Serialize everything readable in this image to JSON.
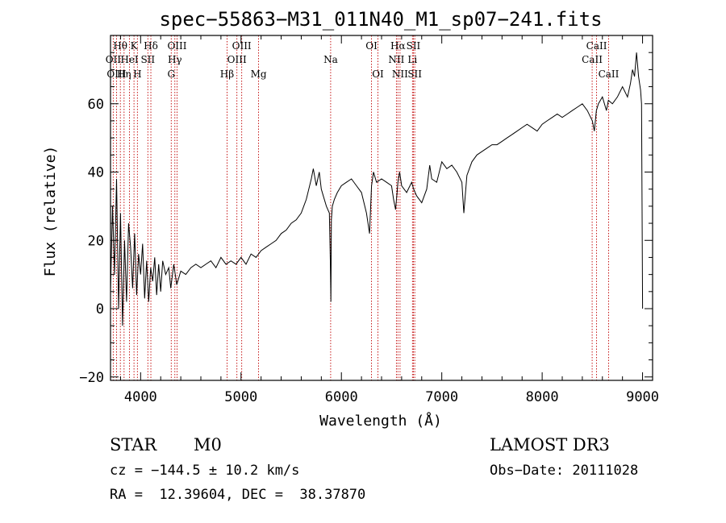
{
  "chart_data": {
    "type": "line",
    "title": "spec−55863−M31_011N40_M1_sp07−241.fits",
    "xlabel": "Wavelength (Å)",
    "ylabel": "Flux (relative)",
    "xlim": [
      3700,
      9100
    ],
    "ylim": [
      -21,
      80
    ],
    "xticks": [
      4000,
      5000,
      6000,
      7000,
      8000,
      9000
    ],
    "yticks": [
      -20,
      0,
      20,
      40,
      60
    ],
    "xtick_labels": [
      "4000",
      "5000",
      "6000",
      "7000",
      "8000",
      "9000"
    ],
    "ytick_labels": [
      "−20",
      "0",
      "20",
      "40",
      "60"
    ],
    "series": [
      {
        "name": "flux",
        "x": [
          3700,
          3720,
          3740,
          3760,
          3780,
          3800,
          3820,
          3840,
          3860,
          3880,
          3900,
          3920,
          3940,
          3960,
          3980,
          4000,
          4020,
          4040,
          4060,
          4080,
          4100,
          4120,
          4140,
          4160,
          4180,
          4200,
          4220,
          4250,
          4280,
          4300,
          4330,
          4360,
          4400,
          4450,
          4500,
          4550,
          4600,
          4650,
          4700,
          4750,
          4800,
          4850,
          4900,
          4950,
          5000,
          5050,
          5100,
          5150,
          5200,
          5250,
          5300,
          5350,
          5400,
          5450,
          5500,
          5550,
          5600,
          5650,
          5700,
          5720,
          5750,
          5780,
          5800,
          5820,
          5850,
          5880,
          5890,
          5895,
          5900,
          5910,
          5930,
          5960,
          6000,
          6050,
          6100,
          6150,
          6200,
          6250,
          6280,
          6300,
          6320,
          6350,
          6400,
          6450,
          6500,
          6520,
          6540,
          6563,
          6580,
          6600,
          6650,
          6700,
          6720,
          6750,
          6800,
          6850,
          6880,
          6900,
          6950,
          7000,
          7050,
          7100,
          7150,
          7200,
          7220,
          7250,
          7300,
          7350,
          7400,
          7450,
          7500,
          7550,
          7600,
          7650,
          7700,
          7750,
          7800,
          7850,
          7900,
          7950,
          8000,
          8050,
          8100,
          8150,
          8200,
          8250,
          8300,
          8350,
          8400,
          8450,
          8500,
          8520,
          8540,
          8560,
          8600,
          8640,
          8660,
          8700,
          8750,
          8800,
          8850,
          8880,
          8900,
          8920,
          8940,
          8960,
          8980,
          8990,
          9000
        ],
        "y": [
          5,
          30,
          10,
          38,
          0,
          28,
          -5,
          20,
          2,
          25,
          18,
          6,
          22,
          4,
          16,
          10,
          19,
          3,
          14,
          2,
          12,
          8,
          15,
          4,
          13,
          5,
          14,
          10,
          12,
          6,
          13,
          7,
          11,
          10,
          12,
          13,
          12,
          13,
          14,
          12,
          15,
          13,
          14,
          13,
          15,
          13,
          16,
          15,
          17,
          18,
          19,
          20,
          22,
          23,
          25,
          26,
          28,
          32,
          38,
          41,
          36,
          40,
          35,
          33,
          30,
          28,
          14,
          2,
          26,
          30,
          32,
          34,
          36,
          37,
          38,
          36,
          34,
          28,
          22,
          36,
          40,
          37,
          38,
          37,
          36,
          32,
          29,
          37,
          40,
          36,
          34,
          37,
          35,
          33,
          31,
          35,
          42,
          38,
          37,
          43,
          41,
          42,
          40,
          37,
          28,
          39,
          43,
          45,
          46,
          47,
          48,
          48,
          49,
          50,
          51,
          52,
          53,
          54,
          53,
          52,
          54,
          55,
          56,
          57,
          56,
          57,
          58,
          59,
          60,
          58,
          55,
          52,
          58,
          60,
          62,
          58,
          61,
          60,
          62,
          65,
          62,
          66,
          70,
          68,
          75,
          68,
          64,
          60,
          0
        ]
      }
    ],
    "line_labels": [
      {
        "name": "Hθ",
        "wl": 3798
      },
      {
        "name": "OII",
        "wl": 3727
      },
      {
        "name": "OIII",
        "wl": 3760
      },
      {
        "name": "K",
        "wl": 3934
      },
      {
        "name": "HeI",
        "wl": 3889
      },
      {
        "name": "Hη",
        "wl": 3835
      },
      {
        "name": "Hδ",
        "wl": 4102
      },
      {
        "name": "SII",
        "wl": 4072
      },
      {
        "name": "H",
        "wl": 3968
      },
      {
        "name": "OIII",
        "wl": 4363
      },
      {
        "name": "Hγ",
        "wl": 4341
      },
      {
        "name": "G",
        "wl": 4305
      },
      {
        "name": "OIII",
        "wl": 5007
      },
      {
        "name": "OIII",
        "wl": 4959
      },
      {
        "name": "Hβ",
        "wl": 4861
      },
      {
        "name": "Mg",
        "wl": 5175
      },
      {
        "name": "Na",
        "wl": 5893
      },
      {
        "name": "OI",
        "wl": 6300
      },
      {
        "name": "OI",
        "wl": 6364
      },
      {
        "name": "Hα",
        "wl": 6563
      },
      {
        "name": "SII",
        "wl": 6717
      },
      {
        "name": "NII",
        "wl": 6548
      },
      {
        "name": "Li",
        "wl": 6708
      },
      {
        "name": "NII",
        "wl": 6584
      },
      {
        "name": "SII",
        "wl": 6731
      },
      {
        "name": "CaII",
        "wl": 8542
      },
      {
        "name": "CaII",
        "wl": 8498
      },
      {
        "name": "CaII",
        "wl": 8662
      }
    ]
  },
  "info": {
    "class": "STAR",
    "subclass": "M0",
    "survey": "LAMOST DR3",
    "cz": "cz = −144.5 ± 10.2 km/s",
    "obs_date": "Obs−Date: 20111028",
    "coords": "RA =  12.39604, DEC =  38.37870"
  }
}
